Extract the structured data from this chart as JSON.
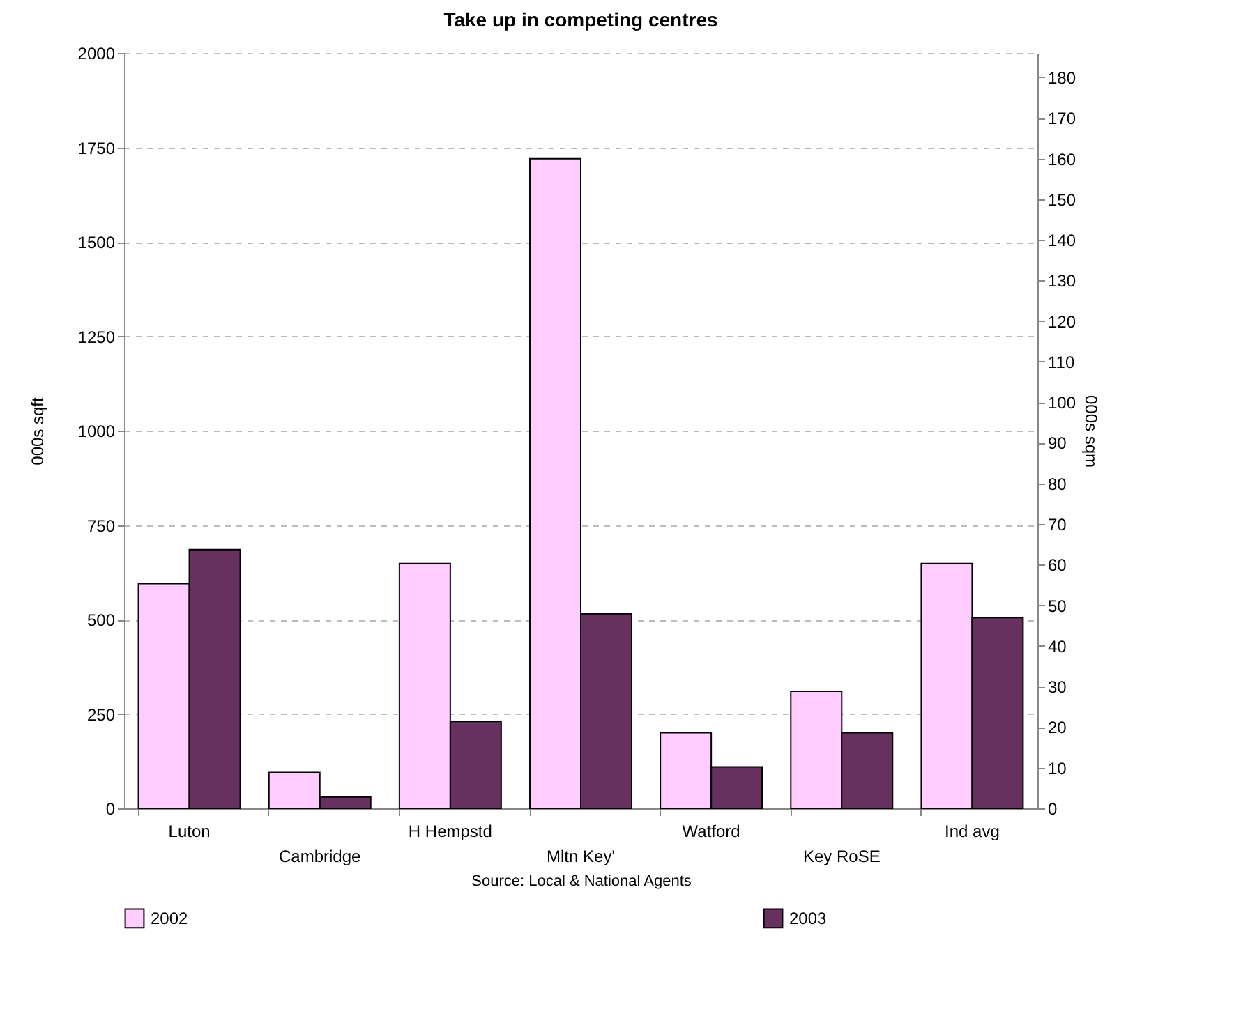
{
  "chart_data": {
    "type": "bar",
    "title": "Take up in competing centres",
    "categories": [
      "Luton",
      "Cambridge",
      "H Hempstd",
      "Mltn Key'",
      "Watford",
      "Key RoSE",
      "Ind avg"
    ],
    "series": [
      {
        "name": "2002",
        "color": "#ffccff",
        "values": [
          595,
          95,
          648,
          1720,
          200,
          310,
          648
        ]
      },
      {
        "name": "2003",
        "color": "#66305f",
        "values": [
          685,
          30,
          230,
          515,
          110,
          200,
          505
        ]
      }
    ],
    "ylabel": "000s sqft",
    "y2label": "000s sqm",
    "ylim": [
      0,
      2000
    ],
    "yticks": [
      0,
      250,
      500,
      750,
      1000,
      1250,
      1500,
      1750,
      2000
    ],
    "y2lim": [
      0,
      186
    ],
    "y2ticks": [
      0,
      10,
      20,
      30,
      40,
      50,
      60,
      70,
      80,
      90,
      100,
      110,
      120,
      130,
      140,
      150,
      160,
      170,
      180
    ],
    "grid": "y",
    "legend": "bottom",
    "annotations": [
      "Source: Local & National Agents"
    ]
  }
}
